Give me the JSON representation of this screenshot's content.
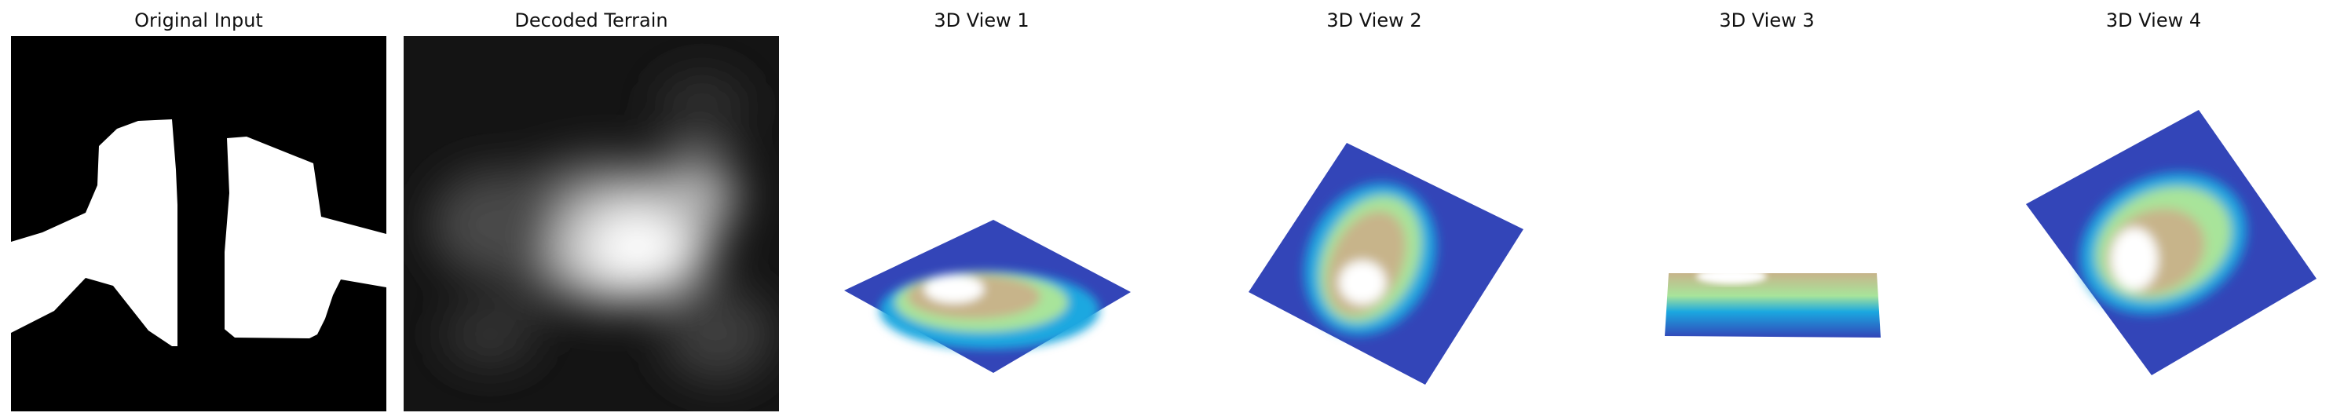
{
  "panels": [
    {
      "title": "Original Input"
    },
    {
      "title": "Decoded Terrain"
    },
    {
      "title": "3D View 1"
    },
    {
      "title": "3D View 2"
    },
    {
      "title": "3D View 3"
    },
    {
      "title": "3D View 4"
    }
  ],
  "colors": {
    "terrain_low": "#3345b8",
    "terrain_mid_low": "#1aa8e0",
    "terrain_mid": "#a8e49a",
    "terrain_high": "#c7b48a",
    "terrain_peak": "#ffffff",
    "background": "#ffffff",
    "image_bg": "#000000"
  }
}
